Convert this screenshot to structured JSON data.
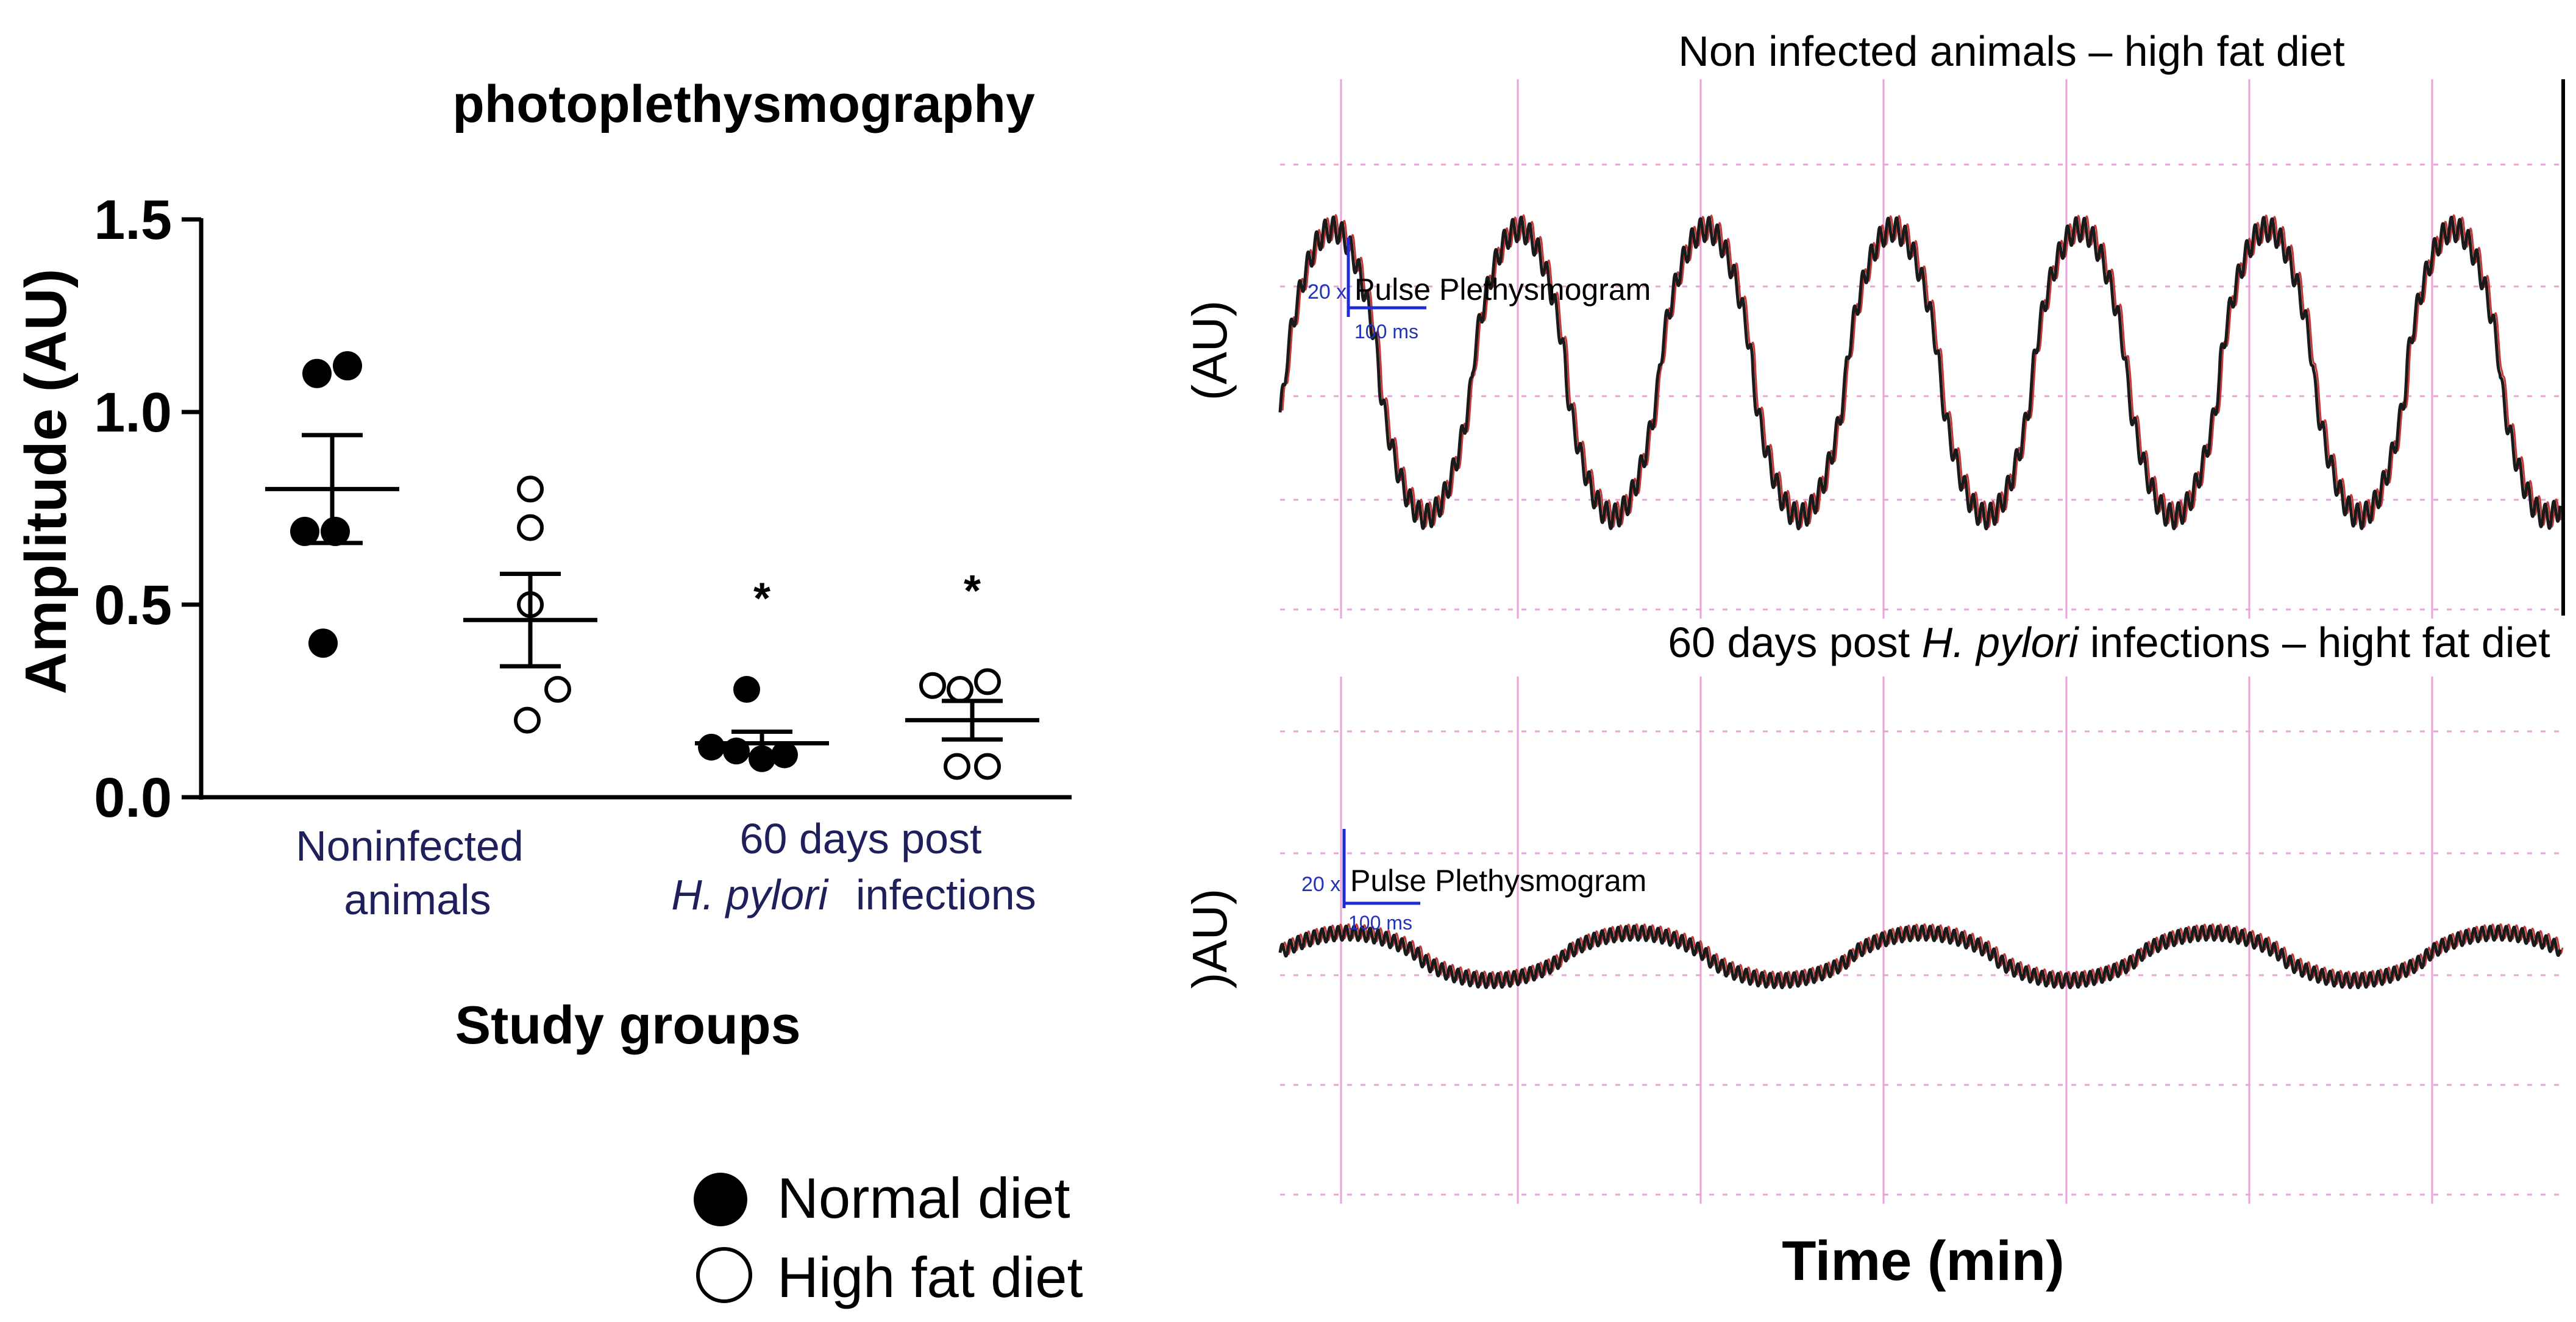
{
  "chart_data": [
    {
      "type": "scatter",
      "title": "photoplethysmography",
      "ylabel": "Amplitude (AU)",
      "xlabel": "Study groups",
      "ylim": [
        0,
        1.5
      ],
      "yticks": [
        "0.0",
        "0.5",
        "1.0",
        "1.5"
      ],
      "ytick_values": [
        0,
        0.5,
        1.0,
        1.5
      ],
      "grid": false,
      "legend_position": "bottom",
      "groups": [
        {
          "line1": "Noninfected",
          "line2": "animals"
        },
        {
          "line1": "60 days post",
          "line2_italic": "H. pylori",
          "line2_rest": "infections"
        }
      ],
      "legend": [
        "Normal diet",
        "High fat diet"
      ],
      "series": [
        {
          "name": "Noninfected - Normal diet",
          "filled": true,
          "group": 0,
          "values": [
            1.1,
            1.12,
            0.69,
            0.69,
            0.4
          ],
          "mean": 0.8,
          "sem": 0.14,
          "significance": ""
        },
        {
          "name": "Noninfected - High fat diet",
          "filled": false,
          "group": 0,
          "values": [
            0.8,
            0.7,
            0.5,
            0.28,
            0.2
          ],
          "mean": 0.46,
          "sem": 0.12,
          "significance": ""
        },
        {
          "name": "H. pylori - Normal diet",
          "filled": true,
          "group": 1,
          "values": [
            0.28,
            0.13,
            0.12,
            0.1,
            0.11
          ],
          "mean": 0.14,
          "sem": 0.03,
          "significance": "*"
        },
        {
          "name": "H. pylori - High fat diet",
          "filled": false,
          "group": 1,
          "values": [
            0.29,
            0.28,
            0.3,
            0.08,
            0.08
          ],
          "mean": 0.2,
          "sem": 0.05,
          "significance": "*"
        }
      ]
    },
    {
      "type": "line",
      "title": "Non infected animals – high fat diet",
      "ylabel": "(AU)",
      "trace_label": "Pulse Plethysmogram",
      "scale_label_y": "20 x",
      "scale_label_x": "100 ms",
      "slow_wave": {
        "cycles": 6.85,
        "amplitude": 0.82,
        "phase": -0.18,
        "baseline": 0.02
      },
      "ripple": {
        "cycles": 150,
        "amplitude": 0.07
      }
    },
    {
      "type": "line",
      "title_pre": "60 days post ",
      "title_italic": "H. pylori",
      "title_post": " infections – hight fat diet",
      "ylabel": ")AU)",
      "trace_label": "Pulse Plethysmogram",
      "scale_label_y": "20 x",
      "scale_label_x": "100 ms",
      "slow_wave": {
        "cycles": 4.45,
        "amplitude": 0.34,
        "phase": 0.1,
        "baseline": 0.0
      },
      "ripple": {
        "cycles": 160,
        "amplitude": 0.1
      }
    }
  ],
  "shared_xlabel": "Time (min)",
  "colors": {
    "axis": "#000000",
    "group_label": "#1f1f5c",
    "grid": "#e9a3d6",
    "trace": "#1a1a1a",
    "trace_red": "#c43a3a",
    "scale_bar": "#1f2bd6",
    "scale_text": "#2233bb"
  }
}
